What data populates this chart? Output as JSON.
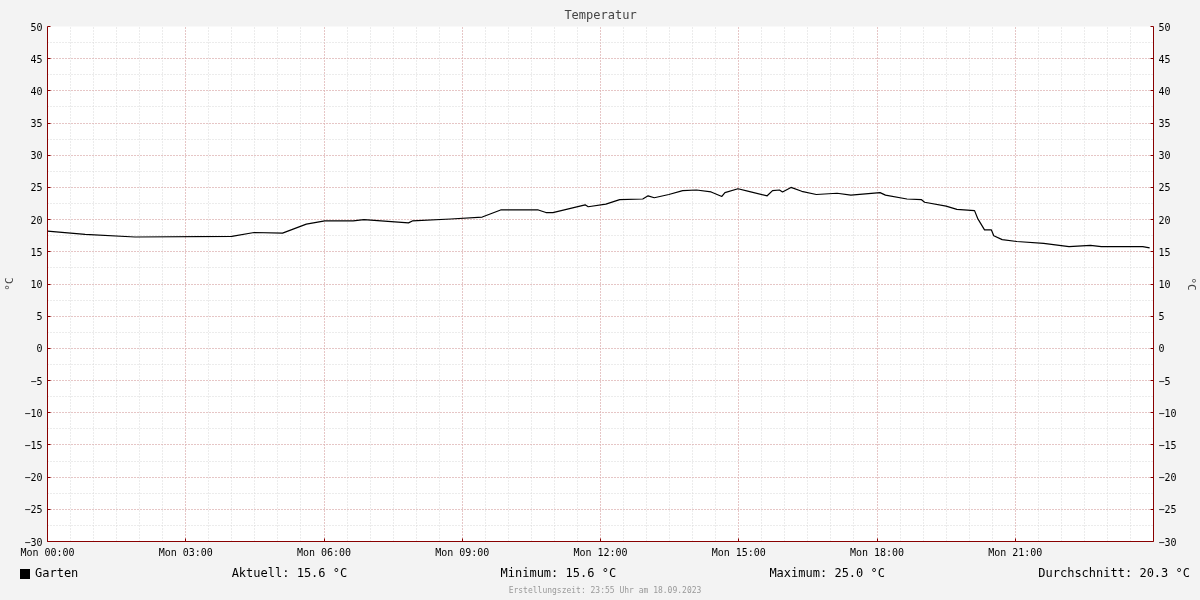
{
  "chart_data": {
    "type": "line",
    "title": "Temperatur",
    "ylabel": "°C",
    "y2label": "°C",
    "x": [
      "2023-09-18T00:00",
      "2023-09-18T00:49",
      "2023-09-18T01:54",
      "2023-09-18T04:00",
      "2023-09-18T04:29",
      "2023-09-18T05:06",
      "2023-09-18T05:37",
      "2023-09-18T06:01",
      "2023-09-18T06:38",
      "2023-09-18T06:52",
      "2023-09-18T07:50",
      "2023-09-18T07:55",
      "2023-09-18T08:45",
      "2023-09-18T09:26",
      "2023-09-18T09:50",
      "2023-09-18T10:39",
      "2023-09-18T10:49",
      "2023-09-18T10:58",
      "2023-09-18T11:40",
      "2023-09-18T11:44",
      "2023-09-18T12:07",
      "2023-09-18T12:25",
      "2023-09-18T12:55",
      "2023-09-18T13:02",
      "2023-09-18T13:10",
      "2023-09-18T13:29",
      "2023-09-18T13:47",
      "2023-09-18T14:05",
      "2023-09-18T14:24",
      "2023-09-18T14:38",
      "2023-09-18T14:42",
      "2023-09-18T14:59",
      "2023-09-18T15:13",
      "2023-09-18T15:37",
      "2023-09-18T15:44",
      "2023-09-18T15:53",
      "2023-09-18T15:57",
      "2023-09-18T16:08",
      "2023-09-18T16:22",
      "2023-09-18T16:41",
      "2023-09-18T17:08",
      "2023-09-18T17:26",
      "2023-09-18T18:04",
      "2023-09-18T18:11",
      "2023-09-18T18:39",
      "2023-09-18T18:58",
      "2023-09-18T19:02",
      "2023-09-18T19:30",
      "2023-09-18T19:44",
      "2023-09-18T20:07",
      "2023-09-18T20:11",
      "2023-09-18T20:20",
      "2023-09-18T20:29",
      "2023-09-18T20:32",
      "2023-09-18T20:43",
      "2023-09-18T21:02",
      "2023-09-18T21:37",
      "2023-09-18T22:10",
      "2023-09-18T22:38",
      "2023-09-18T22:52",
      "2023-09-18T23:46",
      "2023-09-18T23:55"
    ],
    "series": [
      {
        "name": "Garten",
        "color": "#000000",
        "values": [
          18.2,
          17.7,
          17.3,
          17.4,
          18.0,
          17.9,
          19.3,
          19.8,
          19.8,
          20.0,
          19.5,
          19.8,
          20.1,
          20.4,
          21.5,
          21.5,
          21.1,
          21.1,
          22.3,
          22.0,
          22.4,
          23.1,
          23.2,
          23.7,
          23.4,
          23.9,
          24.5,
          24.6,
          24.3,
          23.6,
          24.2,
          24.8,
          24.4,
          23.7,
          24.5,
          24.6,
          24.3,
          25.0,
          24.4,
          23.9,
          24.1,
          23.8,
          24.2,
          23.8,
          23.2,
          23.1,
          22.7,
          22.1,
          21.6,
          21.4,
          20.2,
          18.4,
          18.4,
          17.5,
          16.9,
          16.6,
          16.3,
          15.8,
          16.0,
          15.8,
          15.8,
          15.6
        ]
      }
    ],
    "xlim": [
      "2023-09-18T00:00",
      "2023-09-19T00:00"
    ],
    "xticks": [
      {
        "value": "2023-09-18T00:00",
        "label": "Mon 00:00"
      },
      {
        "value": "2023-09-18T03:00",
        "label": "Mon 03:00"
      },
      {
        "value": "2023-09-18T06:00",
        "label": "Mon 06:00"
      },
      {
        "value": "2023-09-18T09:00",
        "label": "Mon 09:00"
      },
      {
        "value": "2023-09-18T12:00",
        "label": "Mon 12:00"
      },
      {
        "value": "2023-09-18T15:00",
        "label": "Mon 15:00"
      },
      {
        "value": "2023-09-18T18:00",
        "label": "Mon 18:00"
      },
      {
        "value": "2023-09-18T21:00",
        "label": "Mon 21:00"
      }
    ],
    "ylim": [
      -30,
      50
    ],
    "yticks": [
      -30,
      -25,
      -20,
      -15,
      -10,
      -5,
      0,
      5,
      10,
      15,
      20,
      25,
      30,
      35,
      40,
      45,
      50
    ],
    "y2lim": [
      -30,
      50
    ],
    "y2ticks": [
      -30,
      -25,
      -20,
      -15,
      -10,
      -5,
      0,
      5,
      10,
      15,
      20,
      25,
      30,
      35,
      40,
      45,
      50
    ],
    "grid": true,
    "legend": "bottom left",
    "marker": "none",
    "line_style": "solid",
    "annotations": [
      "Aktuell: 15.6 °C",
      "Minimum: 15.6 °C",
      "Maximum: 25.0 °C",
      "Durchschnitt: 20.3 °C",
      "Erstellungszeit: 23:55 Uhr am 18.09.2023"
    ]
  }
}
